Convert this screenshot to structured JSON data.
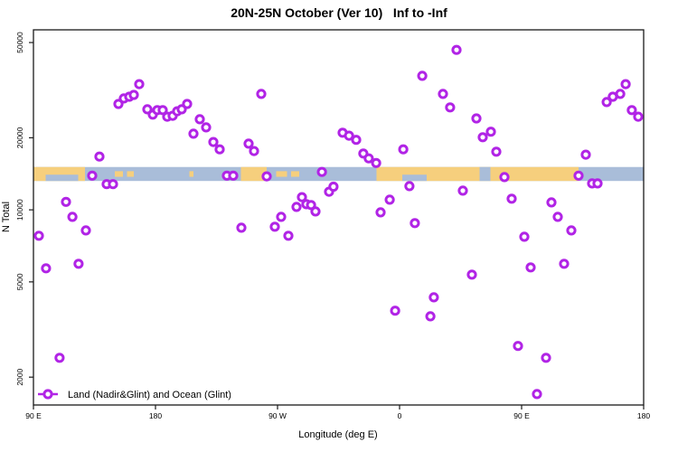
{
  "chart_data": {
    "type": "scatter",
    "title": "20N-25N October (Ver 10)   Inf to -Inf",
    "xlabel": "Longitude (deg E)",
    "ylabel": "N Total",
    "x_axis": {
      "min": 90,
      "max": 540,
      "ticks": [
        {
          "pos": 90,
          "label": "90 E"
        },
        {
          "pos": 180,
          "label": "180"
        },
        {
          "pos": 270,
          "label": "90 W"
        },
        {
          "pos": 360,
          "label": "0"
        },
        {
          "pos": 450,
          "label": "90 E"
        },
        {
          "pos": 540,
          "label": "180"
        }
      ]
    },
    "y_axis": {
      "scale": "log",
      "min": 1530,
      "max": 56500,
      "ticks": [
        2000,
        5000,
        10000,
        20000,
        50000
      ]
    },
    "legend": {
      "label": "Land (Nadir&Glint) and Ocean (Glint)"
    },
    "marker": {
      "shape": "open-circle",
      "color": "#b124e6"
    },
    "map_strip": {
      "value_top": 15100,
      "value_bottom": 13200,
      "ocean_color": "#a9bdd9",
      "land_color": "#f6cf7d",
      "land_segments": [
        {
          "from": 90,
          "to": 128,
          "h": "full"
        },
        {
          "from": 150,
          "to": 156,
          "h": "thin"
        },
        {
          "from": 159,
          "to": 164,
          "h": "thin"
        },
        {
          "from": 205,
          "to": 208,
          "h": "thin"
        },
        {
          "from": 243,
          "to": 262,
          "h": "full"
        },
        {
          "from": 269,
          "to": 277,
          "h": "thin"
        },
        {
          "from": 280,
          "to": 286,
          "h": "thin"
        },
        {
          "from": 343,
          "to": 492,
          "h": "full"
        }
      ],
      "ocean_notches": [
        {
          "from": 99,
          "to": 123,
          "pos": "bottom"
        },
        {
          "from": 362,
          "to": 380,
          "pos": "bottom"
        },
        {
          "from": 419,
          "to": 427,
          "pos": "full"
        }
      ]
    },
    "points": [
      [
        168,
        33500
      ],
      [
        152.7,
        27700
      ],
      [
        156.7,
        29200
      ],
      [
        160.7,
        29700
      ],
      [
        164,
        30200
      ],
      [
        174,
        26300
      ],
      [
        178,
        25000
      ],
      [
        181.3,
        26100
      ],
      [
        185.3,
        26100
      ],
      [
        188.7,
        24500
      ],
      [
        192.7,
        24700
      ],
      [
        196,
        25800
      ],
      [
        199.3,
        26300
      ],
      [
        203.3,
        27700
      ],
      [
        208,
        20800
      ],
      [
        212.7,
        23900
      ],
      [
        217.3,
        22100
      ],
      [
        222.7,
        19200
      ],
      [
        227.3,
        17900
      ],
      [
        138.7,
        16700
      ],
      [
        258,
        30500
      ],
      [
        376.7,
        36300
      ],
      [
        392,
        30500
      ],
      [
        318,
        21000
      ],
      [
        322.7,
        20400
      ],
      [
        328,
        19600
      ],
      [
        248.7,
        18900
      ],
      [
        252.7,
        17600
      ],
      [
        333.3,
        17200
      ],
      [
        337.3,
        16400
      ],
      [
        342.7,
        15700
      ],
      [
        362.7,
        17900
      ],
      [
        402,
        46600
      ],
      [
        397.3,
        26800
      ],
      [
        416.7,
        24100
      ],
      [
        421.3,
        20100
      ],
      [
        427.3,
        21200
      ],
      [
        431.3,
        17500
      ],
      [
        497.3,
        17000
      ],
      [
        512.7,
        28200
      ],
      [
        517.3,
        29700
      ],
      [
        522.7,
        30500
      ],
      [
        526.7,
        33500
      ],
      [
        531.3,
        26100
      ],
      [
        536,
        24500
      ],
      [
        133.3,
        13900
      ],
      [
        144,
        12800
      ],
      [
        148.7,
        12800
      ],
      [
        232.7,
        13900
      ],
      [
        237.3,
        13900
      ],
      [
        114,
        10800
      ],
      [
        118.7,
        9350
      ],
      [
        128.7,
        8200
      ],
      [
        94,
        7790
      ],
      [
        99.3,
        5700
      ],
      [
        123.3,
        5950
      ],
      [
        262,
        13800
      ],
      [
        302.7,
        14400
      ],
      [
        308,
        11900
      ],
      [
        311.3,
        12500
      ],
      [
        288,
        11300
      ],
      [
        291.3,
        10560
      ],
      [
        294.7,
        10470
      ],
      [
        298,
        9850
      ],
      [
        284,
        10280
      ],
      [
        272.7,
        9350
      ],
      [
        268,
        8500
      ],
      [
        243.3,
        8420
      ],
      [
        278,
        7790
      ],
      [
        352.7,
        11030
      ],
      [
        346,
        9760
      ],
      [
        367.3,
        12560
      ],
      [
        371.3,
        8800
      ],
      [
        385.3,
        4310
      ],
      [
        437.3,
        13700
      ],
      [
        492,
        13900
      ],
      [
        502,
        12890
      ],
      [
        506,
        12890
      ],
      [
        406.7,
        12030
      ],
      [
        442.7,
        11130
      ],
      [
        472,
        10740
      ],
      [
        476.7,
        9350
      ],
      [
        486.7,
        8200
      ],
      [
        452,
        7720
      ],
      [
        456.7,
        5750
      ],
      [
        481.3,
        5950
      ],
      [
        413.3,
        5360
      ],
      [
        109.3,
        2410
      ],
      [
        356.7,
        3790
      ],
      [
        382.7,
        3590
      ],
      [
        447.3,
        2700
      ],
      [
        468,
        2410
      ],
      [
        461.3,
        1700
      ]
    ]
  }
}
